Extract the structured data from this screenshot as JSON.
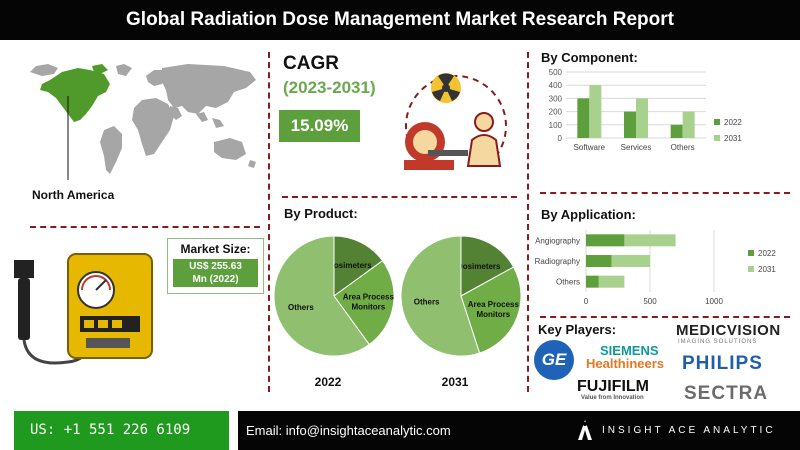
{
  "title": "Global Radiation Dose Management Market Research Report",
  "region": {
    "label": "North America"
  },
  "cagr": {
    "title": "CAGR",
    "years": "(2023-2031)",
    "value": "15.09%"
  },
  "market_size": {
    "label": "Market Size:",
    "value_line1": "US$ 255.63",
    "value_line2": "Mn (2022)"
  },
  "sections": {
    "by_component": "By Component:",
    "by_product": "By Product:",
    "by_application": "By Application:",
    "key_players": "Key Players:"
  },
  "colors": {
    "dark_green": "#5c9f3c",
    "light_green": "#a9d18e",
    "accent_red": "#8b1a1a"
  },
  "chart_data": [
    {
      "type": "bar",
      "title": "By Component:",
      "categories": [
        "Software",
        "Services",
        "Others"
      ],
      "series": [
        {
          "name": "2022",
          "values": [
            300,
            200,
            100
          ],
          "color": "#5c9f3c"
        },
        {
          "name": "2031",
          "values": [
            400,
            300,
            200
          ],
          "color": "#a9d18e"
        }
      ],
      "ylim": [
        0,
        500
      ],
      "yticks": [
        0,
        100,
        200,
        300,
        400,
        500
      ],
      "legend": "right",
      "grid": true
    },
    {
      "type": "pie",
      "title": "By Product:",
      "label": "2022",
      "slices": [
        {
          "name": "Dosimeters",
          "value": 15,
          "color": "#548235"
        },
        {
          "name": "Area Process Monitors",
          "value": 25,
          "color": "#70ad47"
        },
        {
          "name": "Others",
          "value": 60,
          "color": "#8fbf6f"
        }
      ]
    },
    {
      "type": "pie",
      "label": "2031",
      "slices": [
        {
          "name": "Dosimeters",
          "value": 17,
          "color": "#548235"
        },
        {
          "name": "Area Process Monitors",
          "value": 28,
          "color": "#70ad47"
        },
        {
          "name": "Others",
          "value": 55,
          "color": "#8fbf6f"
        }
      ]
    },
    {
      "type": "bar",
      "orientation": "horizontal",
      "stacked": true,
      "title": "By Application:",
      "categories": [
        "Angiography",
        "Radiography",
        "Others"
      ],
      "series": [
        {
          "name": "2022",
          "values": [
            300,
            200,
            100
          ],
          "color": "#5c9f3c"
        },
        {
          "name": "2031",
          "values": [
            400,
            300,
            200
          ],
          "color": "#a9d18e"
        }
      ],
      "xlim": [
        0,
        1000
      ],
      "xticks": [
        0,
        500,
        1000
      ],
      "legend": "right",
      "grid": true
    }
  ],
  "key_players": {
    "ge": "GE",
    "siemens_line1": "SIEMENS",
    "siemens_line2": "Healthineers",
    "medicvision": "MEDICVISION",
    "medicvision_sub": "IMAGING SOLUTIONS",
    "philips": "PHILIPS",
    "fujifilm": "FUJIFILM",
    "fujifilm_sub": "Value from Innovation",
    "sectra": "SECTRA"
  },
  "footer": {
    "phone": "US: +1 551 226 6109",
    "email": "Email: info@insightaceanalytic.com",
    "brand": "INSIGHT ACE ANALYTIC"
  }
}
